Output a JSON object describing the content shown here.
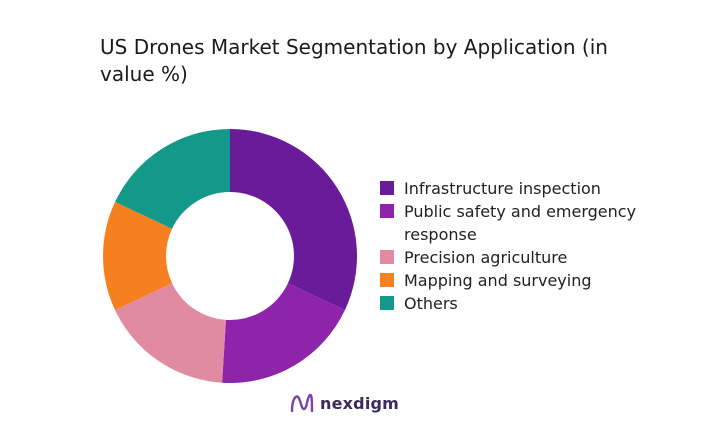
{
  "chart_data": {
    "type": "pie",
    "variant": "donut",
    "title": "US Drones Market Segmentation by Application (in value %)",
    "categories": [
      "Infrastructure inspection",
      "Public safety and emergency response",
      "Precision agriculture",
      "Mapping and surveying",
      "Others"
    ],
    "values": [
      32,
      19,
      17,
      14,
      18
    ],
    "colors": [
      "#6a1b9a",
      "#8e24aa",
      "#e08ba2",
      "#f5801f",
      "#139889"
    ],
    "legend_position": "right"
  },
  "brand": {
    "name": "nexdigm",
    "icon": "nexdigm-logo-icon"
  }
}
